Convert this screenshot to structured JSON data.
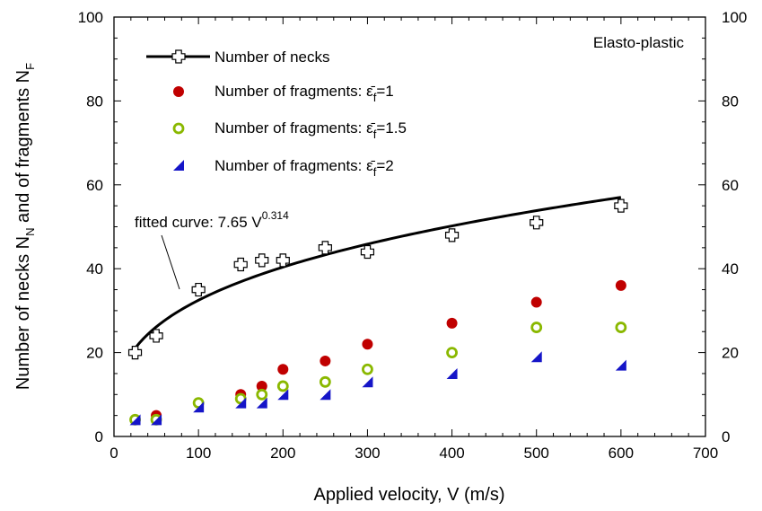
{
  "chart_data": {
    "type": "scatter",
    "xlabel": "Applied velocity, V (m/s)",
    "ylabel": "Number of necks N",
    "ylabel_sub1": "N",
    "ylabel_mid": " and of fragments N",
    "ylabel_sub2": "F",
    "xlim": [
      0,
      700
    ],
    "ylim": [
      0,
      100
    ],
    "x_ticks": [
      "0",
      "100",
      "200",
      "300",
      "400",
      "500",
      "600",
      "700"
    ],
    "y_ticks": [
      "0",
      "20",
      "40",
      "60",
      "80",
      "100"
    ],
    "y_ticks_right": [
      "0",
      "20",
      "40",
      "60",
      "80",
      "100"
    ],
    "annotation_material": "Elasto-plastic",
    "fit_annotation": {
      "text": "fitted curve: 7.65 V",
      "exponent": "0.314",
      "a": 7.65,
      "b": 0.314,
      "x_range": [
        25,
        600
      ]
    },
    "series": [
      {
        "name": "Number of necks",
        "marker": "cross",
        "color": "#000000",
        "x": [
          25,
          50,
          100,
          150,
          175,
          200,
          250,
          300,
          400,
          500,
          600
        ],
        "y": [
          20,
          24,
          35,
          41,
          42,
          42,
          45,
          44,
          48,
          51,
          55
        ]
      },
      {
        "name": "Number of fragments: ε̄f=1",
        "label_prefix": "Number of fragments: ",
        "label_eps": "ε̄",
        "label_sub": "f",
        "label_value": "=1",
        "marker": "circle",
        "color": "#c00000",
        "x": [
          25,
          50,
          100,
          150,
          175,
          200,
          250,
          300,
          400,
          500,
          600
        ],
        "y": [
          4,
          5,
          8,
          10,
          12,
          16,
          18,
          22,
          27,
          32,
          36
        ]
      },
      {
        "name": "Number of fragments: ε̄f=1.5",
        "label_prefix": "Number of fragments: ",
        "label_eps": "ε̄",
        "label_sub": "f",
        "label_value": "=1.5",
        "marker": "ring",
        "color": "#8ab800",
        "x": [
          25,
          50,
          100,
          150,
          175,
          200,
          250,
          300,
          400,
          500,
          600
        ],
        "y": [
          4,
          4,
          8,
          9,
          10,
          12,
          13,
          16,
          20,
          26,
          26
        ]
      },
      {
        "name": "Number of fragments: ε̄f=2",
        "label_prefix": "Number of fragments: ",
        "label_eps": "ε̄",
        "label_sub": "f",
        "label_value": "=2",
        "marker": "triangle",
        "color": "#1515c8",
        "x": [
          25,
          50,
          100,
          150,
          175,
          200,
          250,
          300,
          400,
          500,
          600
        ],
        "y": [
          4,
          4,
          7,
          8,
          8,
          10,
          10,
          13,
          15,
          19,
          17
        ]
      }
    ],
    "fit_line_label": "Number of necks"
  }
}
